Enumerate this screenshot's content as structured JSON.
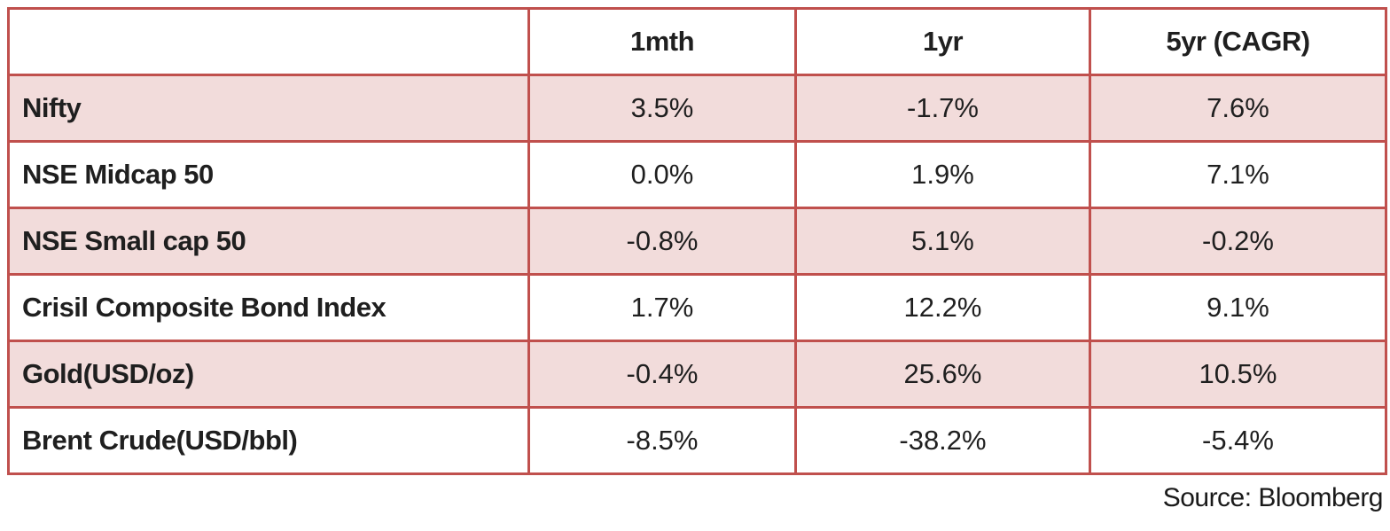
{
  "table": {
    "columns": [
      "",
      "1mth",
      "1yr",
      "5yr (CAGR)"
    ],
    "rows": [
      {
        "label": "Nifty",
        "values": [
          "3.5%",
          "-1.7%",
          "7.6%"
        ]
      },
      {
        "label": "NSE Midcap 50",
        "values": [
          "0.0%",
          "1.9%",
          "7.1%"
        ]
      },
      {
        "label": "NSE Small cap 50",
        "values": [
          "-0.8%",
          "5.1%",
          "-0.2%"
        ]
      },
      {
        "label": "Crisil Composite Bond Index",
        "values": [
          "1.7%",
          "12.2%",
          "9.1%"
        ]
      },
      {
        "label": "Gold(USD/oz)",
        "values": [
          "-0.4%",
          "25.6%",
          "10.5%"
        ]
      },
      {
        "label": "Brent Crude(USD/bbl)",
        "values": [
          "-8.5%",
          "-38.2%",
          "-5.4%"
        ]
      }
    ]
  },
  "footer": {
    "source": "Source: Bloomberg"
  },
  "colors": {
    "border": "#C0504D",
    "row_fill": "#F2DCDB",
    "text": "#1F1F1F"
  },
  "chart_data": {
    "type": "table",
    "title": "",
    "categories": [
      "1mth",
      "1yr",
      "5yr (CAGR)"
    ],
    "series": [
      {
        "name": "Nifty",
        "values": [
          3.5,
          -1.7,
          7.6
        ]
      },
      {
        "name": "NSE Midcap 50",
        "values": [
          0.0,
          1.9,
          7.1
        ]
      },
      {
        "name": "NSE Small cap 50",
        "values": [
          -0.8,
          5.1,
          -0.2
        ]
      },
      {
        "name": "Crisil Composite Bond Index",
        "values": [
          1.7,
          12.2,
          9.1
        ]
      },
      {
        "name": "Gold(USD/oz)",
        "values": [
          -0.4,
          25.6,
          10.5
        ]
      },
      {
        "name": "Brent Crude(USD/bbl)",
        "values": [
          -8.5,
          -38.2,
          -5.4
        ]
      }
    ],
    "units": "percent",
    "source": "Bloomberg"
  }
}
